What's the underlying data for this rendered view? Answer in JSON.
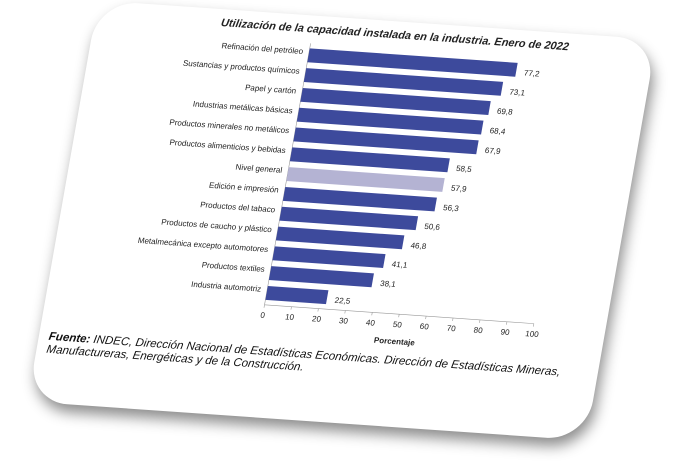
{
  "chart_data": {
    "type": "bar",
    "orientation": "horizontal",
    "title": "Utilización de la capacidad instalada en la industria. Enero de 2022",
    "categories": [
      "Refinación del petróleo",
      "Sustancias y productos químicos",
      "Papel y cartón",
      "Industrias metálicas básicas",
      "Productos minerales no metálicos",
      "Productos alimenticios y bebidas",
      "Nivel general",
      "Edición e impresión",
      "Productos del tabaco",
      "Productos de caucho y plástico",
      "Metalmecánica excepto automotores",
      "Productos textiles",
      "Industria automotriz"
    ],
    "values": [
      77.2,
      73.1,
      69.8,
      68.4,
      67.9,
      58.5,
      57.9,
      56.3,
      50.6,
      46.8,
      41.1,
      38.1,
      22.5
    ],
    "value_labels": [
      "77,2",
      "73,1",
      "69,8",
      "68,4",
      "67,9",
      "58,5",
      "57,9",
      "56,3",
      "50,6",
      "46,8",
      "41,1",
      "38,1",
      "22,5"
    ],
    "colors": [
      "#3d4a9c",
      "#3d4a9c",
      "#3d4a9c",
      "#3d4a9c",
      "#3d4a9c",
      "#3d4a9c",
      "#b4b3d3",
      "#3d4a9c",
      "#3d4a9c",
      "#3d4a9c",
      "#3d4a9c",
      "#3d4a9c",
      "#3d4a9c"
    ],
    "xlim": [
      0,
      100
    ],
    "xticks": [
      0,
      10,
      20,
      30,
      40,
      50,
      60,
      70,
      80,
      90,
      100
    ],
    "xlabel": "Porcentaje",
    "source_label": "Fuente:",
    "source": "INDEC, Dirección Nacional de Estadísticas Económicas. Dirección de Estadísticas Mineras, Manufactureras, Energéticas y de la Construcción."
  }
}
